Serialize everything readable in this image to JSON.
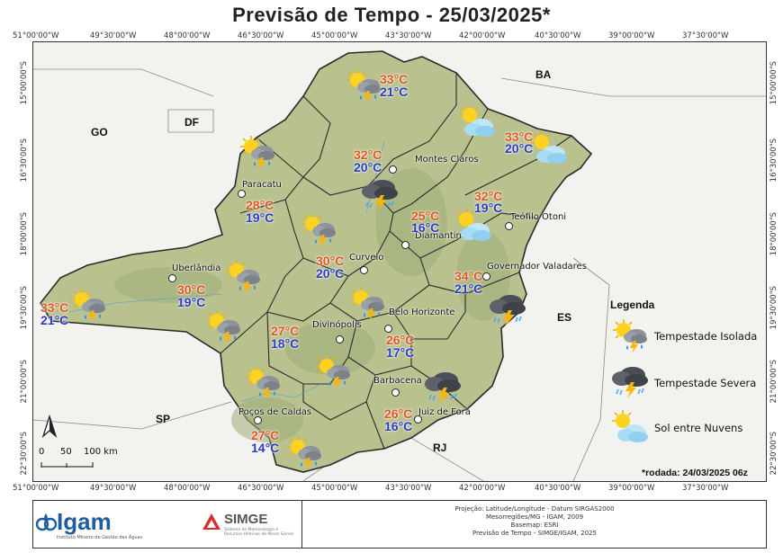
{
  "title": "Previsão de Tempo - 25/03/2025*",
  "axes": {
    "longitudes": [
      "51°00'00\"W",
      "49°30'00\"W",
      "48°00'00\"W",
      "46°30'00\"W",
      "45°00'00\"W",
      "43°30'00\"W",
      "42°00'00\"W",
      "40°30'00\"W",
      "39°00'00\"W",
      "37°30'00\"W"
    ],
    "latitudes": [
      "15°00'00\"S",
      "16°30'00\"S",
      "18°00'00\"S",
      "19°30'00\"S",
      "21°00'00\"S",
      "22°30'00\"S"
    ]
  },
  "states": {
    "go": "GO",
    "df": "DF",
    "ba": "BA",
    "es": "ES",
    "sp": "SP",
    "rj": "RJ"
  },
  "cities": {
    "montes_claros": "Montes Claros",
    "paracatu": "Paracatu",
    "teofilo_otoni": "Teófilo Otoni",
    "diamantina": "Diamantina",
    "curvelo": "Curvelo",
    "governador_valadares": "Governador Valadares",
    "uberlandia": "Uberlândia",
    "belo_horizonte": "Belo Horizonte",
    "divinopolis": "Divinópolis",
    "barbacena": "Barbacena",
    "juiz_de_fora": "Juiz de Fora",
    "pocos_de_caldas": "Poços de Caldas"
  },
  "forecasts": {
    "norte": {
      "max": "33°C",
      "min": "21°C",
      "icon": "tempestade-isolada"
    },
    "jequitinhonha": {
      "max": "33°C",
      "min": "20°C",
      "icon": "sol-entre-nuvens"
    },
    "montes_claros": {
      "max": "32°C",
      "min": "20°C",
      "icon": "tempestade-severa"
    },
    "noroeste": {
      "max": "28°C",
      "min": "19°C",
      "icon": "tempestade-isolada"
    },
    "mucuri": {
      "max": "32°C",
      "min": "19°C",
      "icon": "sol-entre-nuvens"
    },
    "diamantina": {
      "max": "25°C",
      "min": "16°C",
      "icon": "sol-entre-nuvens"
    },
    "central": {
      "max": "30°C",
      "min": "20°C",
      "icon": "tempestade-isolada"
    },
    "rio_doce": {
      "max": "34°C",
      "min": "21°C",
      "icon": "tempestade-severa"
    },
    "triangulo": {
      "max": "30°C",
      "min": "19°C",
      "icon": "tempestade-isolada"
    },
    "triangulo_oeste": {
      "max": "33°C",
      "min": "21°C",
      "icon": "tempestade-isolada"
    },
    "oeste": {
      "max": "27°C",
      "min": "18°C",
      "icon": "tempestade-isolada"
    },
    "metropolitana": {
      "max": "26°C",
      "min": "17°C",
      "icon": "tempestade-isolada"
    },
    "campo_vertentes": {
      "max": "26°C",
      "min": "16°C",
      "icon": "tempestade-severa"
    },
    "sul": {
      "max": "27°C",
      "min": "14°C",
      "icon": "tempestade-isolada"
    }
  },
  "legend": {
    "title": "Legenda",
    "items": [
      {
        "label": "Tempestade Isolada",
        "icon": "tempestade-isolada"
      },
      {
        "label": "Tempestade Severa",
        "icon": "tempestade-severa"
      },
      {
        "label": "Sol entre Nuvens",
        "icon": "sol-entre-nuvens"
      }
    ]
  },
  "scale": {
    "labels": [
      "0",
      "50",
      "100 km"
    ]
  },
  "north_arrow": "N",
  "rodada": "*rodada: 24/03/2025 06z",
  "footer": {
    "igam": "Igam",
    "igam_sub": "Instituto Mineiro de Gestão das Águas",
    "simge": "SIMGE",
    "simge_sub": "Sistema de Meteorologia e Recursos Hídricos de Minas Gerais",
    "credits": [
      "Projeção: Latitude/Longitude - Datum SIRGAS2000",
      "Mesorregiões/MG - IGAM, 2009",
      "Basemap: ESRI",
      "Previsão de Tempo - SIMGE/IGAM, 2025"
    ]
  },
  "colors": {
    "max_temp": "#e0561d",
    "min_temp": "#2b3bbf",
    "state_fill": "#b9c28f",
    "outside_fill": "#f2f2ee"
  }
}
